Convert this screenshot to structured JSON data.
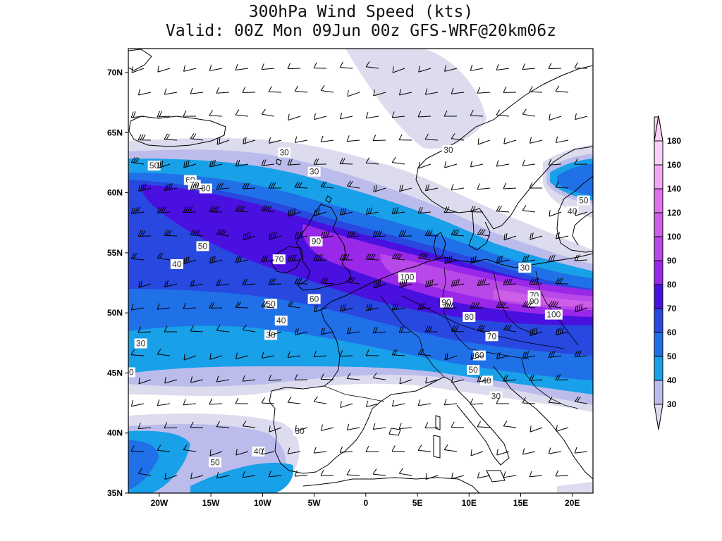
{
  "title": {
    "line1": "300hPa Wind Speed (kts)",
    "line2": "Valid: 00Z Mon 09Jun 00z GFS-WRF@20km06z"
  },
  "axes": {
    "lat_labels": [
      "70N",
      "65N",
      "60N",
      "55N",
      "50N",
      "45N",
      "40N",
      "35N"
    ],
    "lat_values": [
      70,
      65,
      60,
      55,
      50,
      45,
      40,
      35
    ],
    "lon_labels": [
      "20W",
      "15W",
      "10W",
      "5W",
      "0",
      "5E",
      "10E",
      "15E",
      "20E"
    ],
    "lon_values": [
      -20,
      -15,
      -10,
      -5,
      0,
      5,
      10,
      15,
      20
    ],
    "lat_range": [
      35,
      72
    ],
    "lon_range": [
      -23,
      22
    ]
  },
  "colorbar": {
    "levels": [
      "30",
      "40",
      "50",
      "60",
      "70",
      "80",
      "90",
      "100",
      "120",
      "140",
      "160",
      "180"
    ],
    "colors": [
      "#dcdcee",
      "#bcbcec",
      "#18a0e8",
      "#2070e8",
      "#2848e0",
      "#4a10e0",
      "#9a28e8",
      "#b848e8",
      "#cc5ee8",
      "#e070ec",
      "#f0a8f4",
      "#fad0fa"
    ]
  },
  "contour_labels": [
    {
      "text": "30",
      "lon": -7.9,
      "lat": 63.3
    },
    {
      "text": "30",
      "lon": -5,
      "lat": 61.7
    },
    {
      "text": "30",
      "lon": 8,
      "lat": 63.5
    },
    {
      "text": "50",
      "lon": -20.5,
      "lat": 62.2
    },
    {
      "text": "60",
      "lon": -17,
      "lat": 61
    },
    {
      "text": "70",
      "lon": -16.6,
      "lat": 60.6
    },
    {
      "text": "80",
      "lon": -15.5,
      "lat": 60.3
    },
    {
      "text": "90",
      "lon": -4.8,
      "lat": 55.9
    },
    {
      "text": "50",
      "lon": -15.8,
      "lat": 55.5
    },
    {
      "text": "70",
      "lon": -8.4,
      "lat": 54.4
    },
    {
      "text": "40",
      "lon": -18.3,
      "lat": 54
    },
    {
      "text": "100",
      "lon": 4,
      "lat": 52.9
    },
    {
      "text": "60",
      "lon": -5,
      "lat": 51.1
    },
    {
      "text": "90",
      "lon": 7.8,
      "lat": 50.8
    },
    {
      "text": "70",
      "lon": 16.3,
      "lat": 51.4
    },
    {
      "text": "90",
      "lon": 16.3,
      "lat": 50.9
    },
    {
      "text": "100",
      "lon": 18.2,
      "lat": 49.8
    },
    {
      "text": "50",
      "lon": -9.2,
      "lat": 50.7
    },
    {
      "text": "80",
      "lon": 10,
      "lat": 49.6
    },
    {
      "text": "40",
      "lon": -8.2,
      "lat": 49.3
    },
    {
      "text": "30",
      "lon": -9.2,
      "lat": 48.1
    },
    {
      "text": "70",
      "lon": 12.2,
      "lat": 48
    },
    {
      "text": "60",
      "lon": 11,
      "lat": 46.4
    },
    {
      "text": "50",
      "lon": 10.4,
      "lat": 45.2
    },
    {
      "text": "40",
      "lon": 11.7,
      "lat": 44.3
    },
    {
      "text": "30",
      "lon": 12.6,
      "lat": 43
    },
    {
      "text": "30",
      "lon": -21.8,
      "lat": 47.4
    },
    {
      "text": "0",
      "lon": -22.7,
      "lat": 45
    },
    {
      "text": "50",
      "lon": 21.1,
      "lat": 59.3
    },
    {
      "text": "40",
      "lon": 20,
      "lat": 58.4
    },
    {
      "text": "30",
      "lon": 15.4,
      "lat": 53.7
    },
    {
      "text": "30",
      "lon": -6.4,
      "lat": 40.1
    },
    {
      "text": "40",
      "lon": -10.4,
      "lat": 38.4
    },
    {
      "text": "50",
      "lon": -14.6,
      "lat": 37.5
    }
  ]
}
